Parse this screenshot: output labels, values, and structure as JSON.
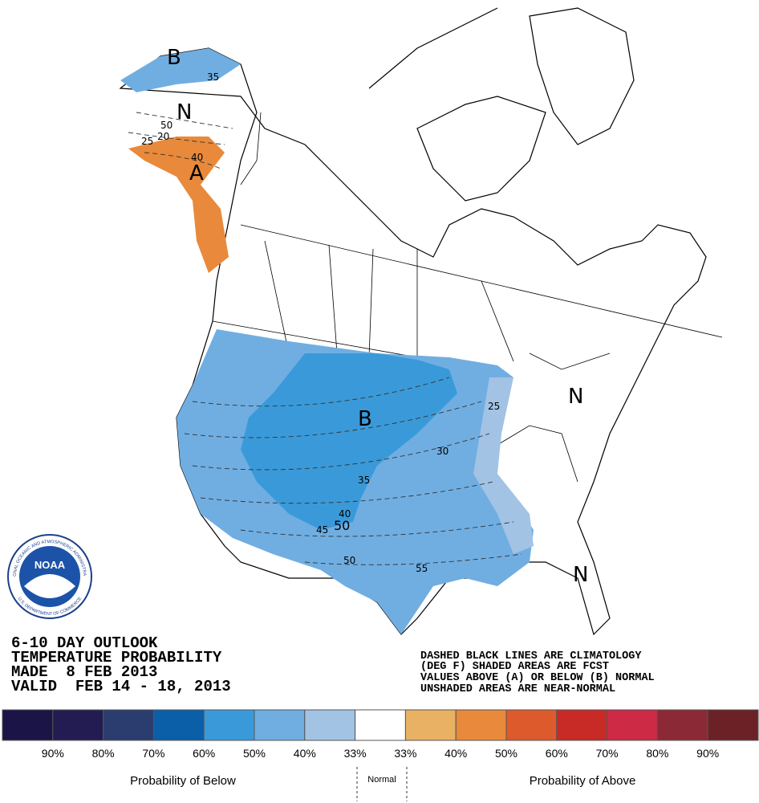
{
  "title_lines": [
    "6-10 DAY OUTLOOK",
    "TEMPERATURE PROBABILITY",
    "MADE  8 FEB 2013",
    "VALID  FEB 14 - 18, 2013"
  ],
  "note_lines": [
    "DASHED BLACK LINES ARE CLIMATOLOGY",
    "(DEG F) SHADED AREAS ARE FCST",
    "VALUES ABOVE (A) OR BELOW (B) NORMAL",
    "UNSHADED AREAS ARE NEAR-NORMAL"
  ],
  "regions": [
    "B",
    "N",
    "A",
    "B",
    "N",
    "N"
  ],
  "contour_labels": [
    35,
    40,
    50,
    25,
    20,
    35,
    40,
    45,
    50,
    50,
    55,
    30,
    25
  ],
  "logo": {
    "name": "NOAA",
    "ring_top": "NATIONAL OCEANIC AND ATMOSPHERIC ADMINISTRATION",
    "ring_bottom": "U.S. DEPARTMENT OF COMMERCE"
  },
  "legend": {
    "colors": [
      "#1b1446",
      "#231c52",
      "#2b3c6e",
      "#0b5ea8",
      "#3a9ad9",
      "#70aee2",
      "#a2c3e4",
      "#ffffff",
      "#e8b163",
      "#e8893b",
      "#dd5a2d",
      "#c82a26",
      "#cc2a45",
      "#8b2a36",
      "#6b2126"
    ],
    "labels": [
      "90%",
      "80%",
      "70%",
      "60%",
      "50%",
      "40%",
      "33%",
      "33%",
      "40%",
      "50%",
      "60%",
      "70%",
      "80%",
      "90%"
    ],
    "below": "Probability of Below",
    "normal": "Normal",
    "above": "Probability of Above"
  }
}
